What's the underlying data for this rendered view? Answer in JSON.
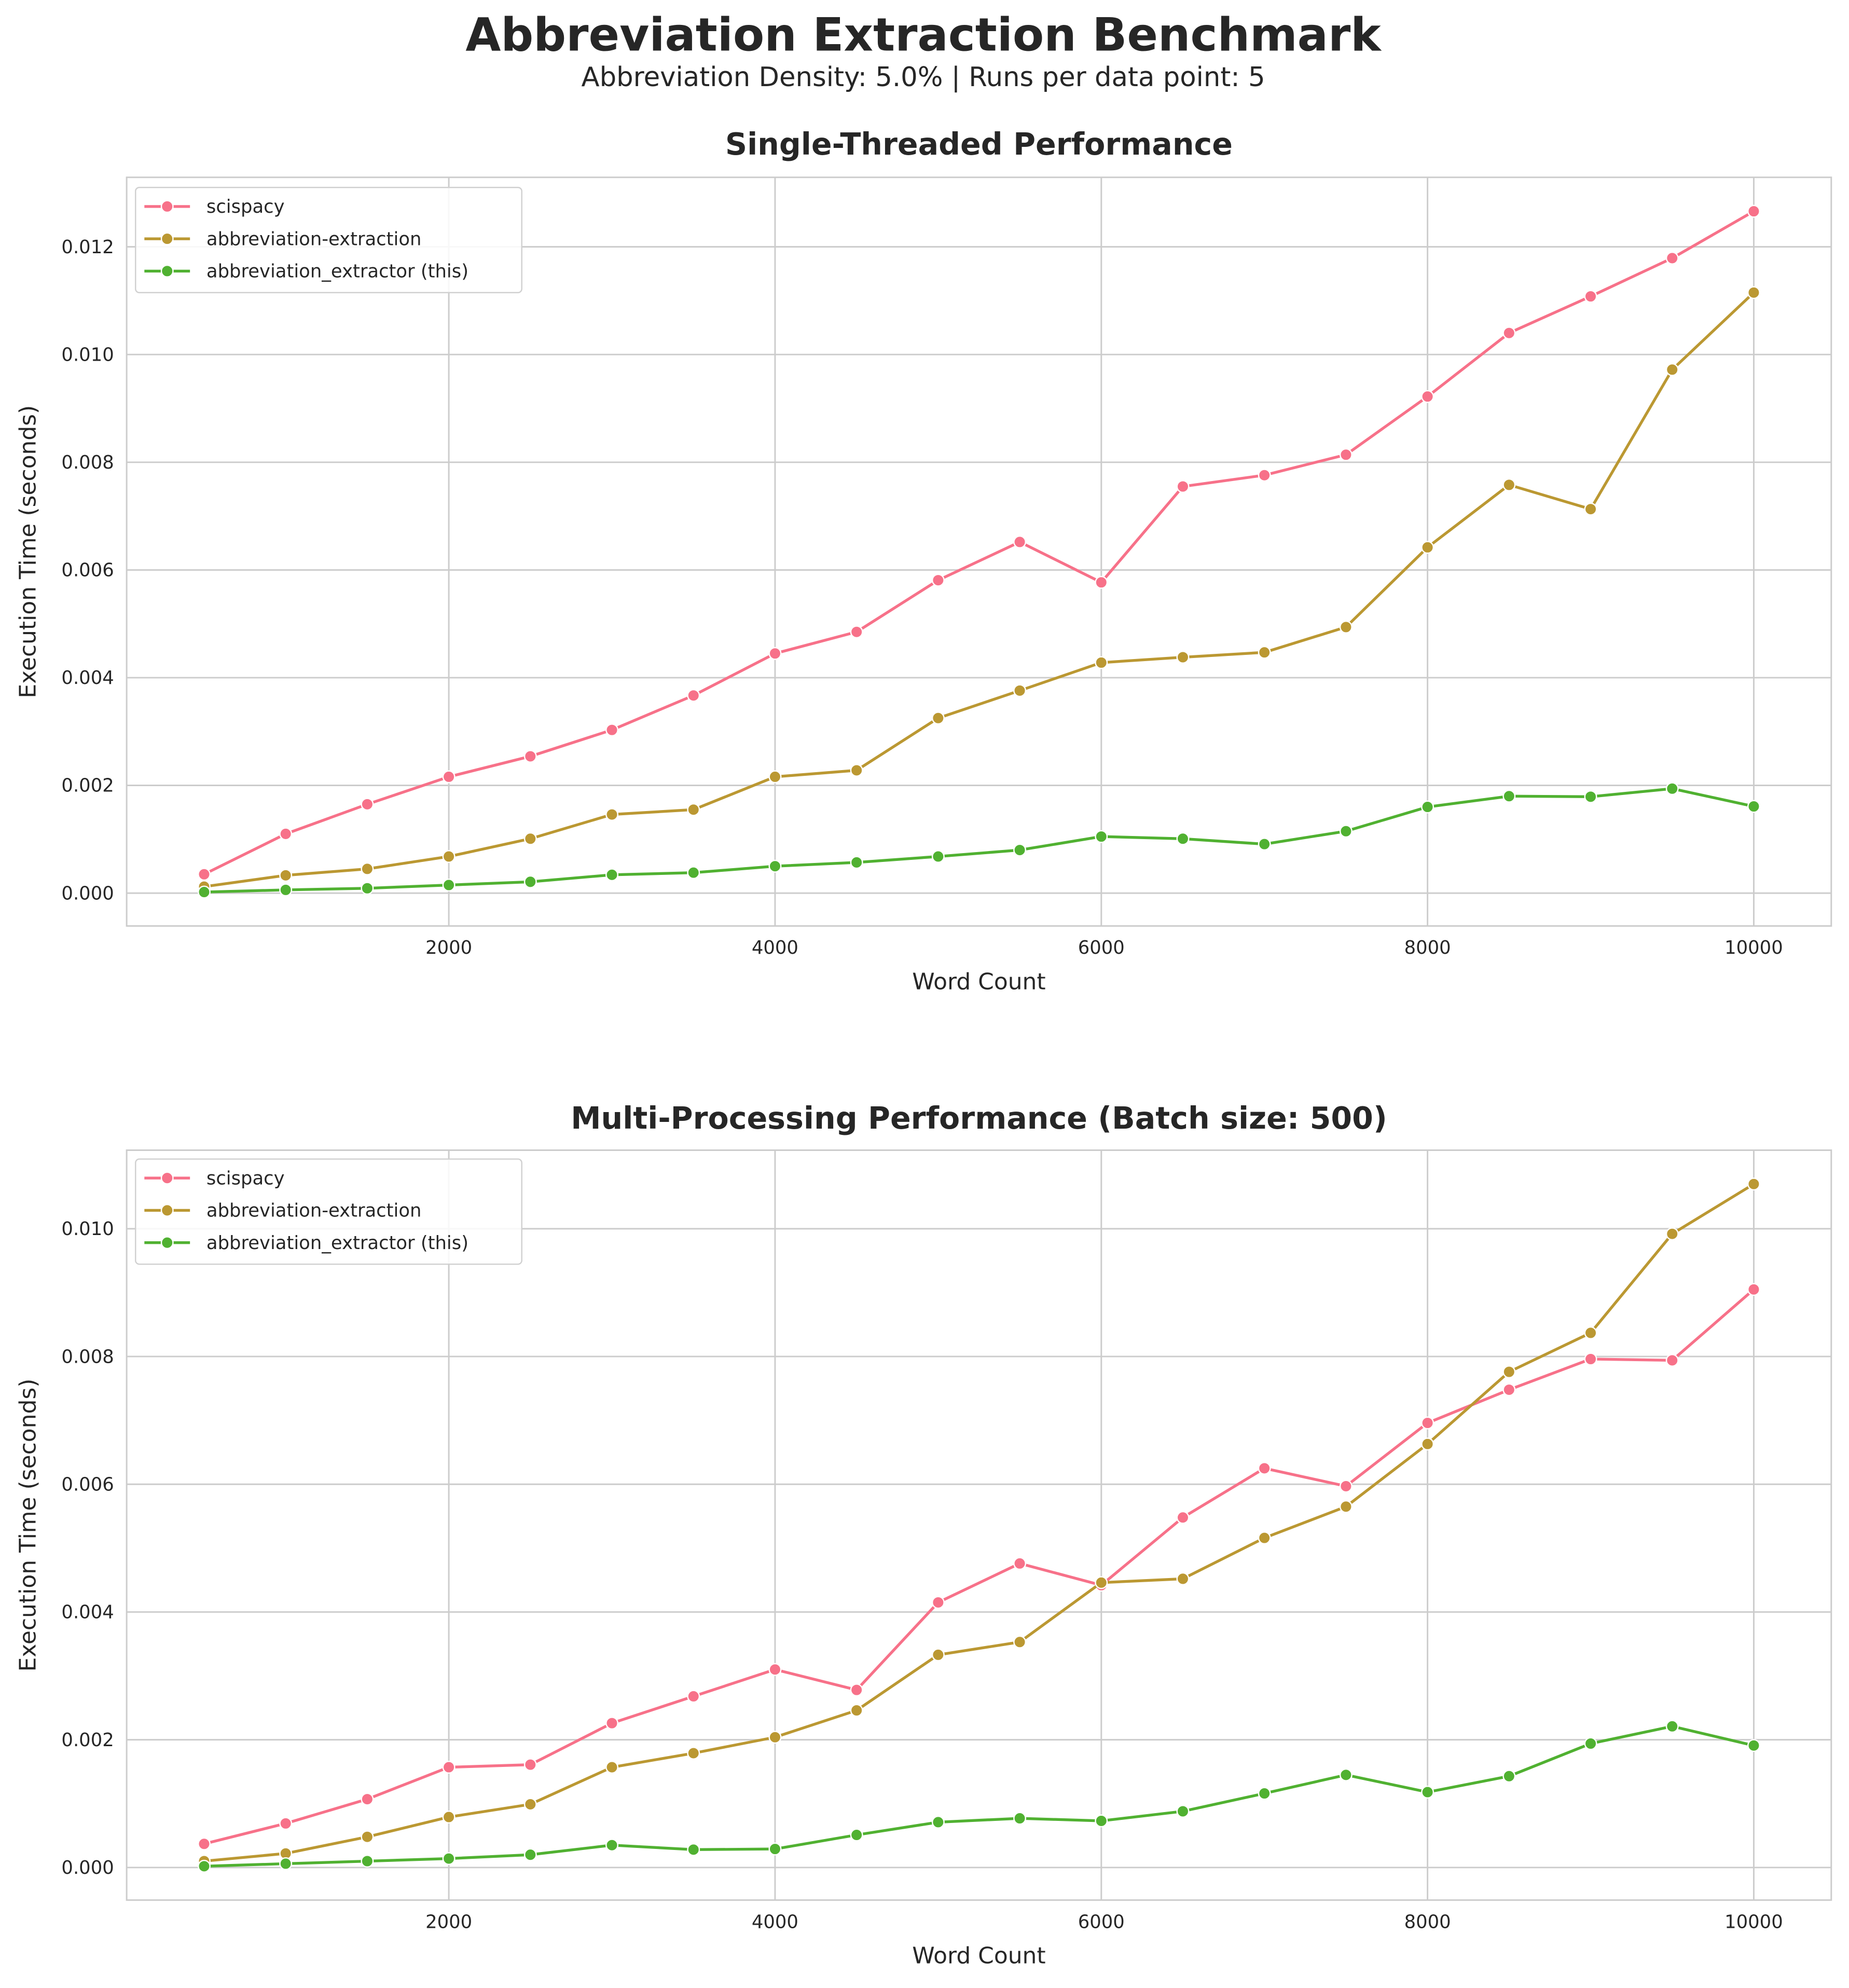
{
  "title": "Abbreviation Extraction Benchmark",
  "subtitle": "Abbreviation Density: 5.0% | Runs per data point: 5",
  "colors": {
    "scispacy": "#f77189",
    "abbreviation-extraction": "#bb9832",
    "abbreviation_extractor (this)": "#50b131"
  },
  "chart_data": [
    {
      "type": "line",
      "title": "Single-Threaded Performance",
      "xlabel": "Word Count",
      "ylabel": "Execution Time (seconds)",
      "xlim": [
        25,
        10475
      ],
      "ylim": [
        -0.00061,
        0.01329
      ],
      "xticks": [
        2000,
        4000,
        6000,
        8000,
        10000
      ],
      "xtick_labels": [
        "2000",
        "4000",
        "6000",
        "8000",
        "10000"
      ],
      "yticks": [
        0,
        0.002,
        0.004,
        0.006,
        0.008,
        0.01,
        0.012
      ],
      "ytick_labels": [
        "0.000",
        "0.002",
        "0.004",
        "0.006",
        "0.008",
        "0.010",
        "0.012"
      ],
      "grid": true,
      "legend": "top-left",
      "x": [
        500,
        1000,
        1500,
        2000,
        2500,
        3000,
        3500,
        4000,
        4500,
        5000,
        5500,
        6000,
        6500,
        7000,
        7500,
        8000,
        8500,
        9000,
        9500,
        10000
      ],
      "series": [
        {
          "name": "scispacy",
          "color": "#f77189",
          "values": [
            0.00035,
            0.0011,
            0.00165,
            0.00216,
            0.00254,
            0.00303,
            0.00367,
            0.00445,
            0.00485,
            0.00581,
            0.00652,
            0.00577,
            0.00755,
            0.00776,
            0.00814,
            0.00922,
            0.0104,
            0.01108,
            0.01179,
            0.01266
          ]
        },
        {
          "name": "abbreviation-extraction",
          "color": "#bb9832",
          "values": [
            0.00012,
            0.00033,
            0.00045,
            0.00068,
            0.00101,
            0.00146,
            0.00155,
            0.00216,
            0.00228,
            0.00325,
            0.00376,
            0.00428,
            0.00438,
            0.00447,
            0.00494,
            0.00642,
            0.00758,
            0.00713,
            0.00972,
            0.01115
          ]
        },
        {
          "name": "abbreviation_extractor (this)",
          "color": "#50b131",
          "values": [
            2e-05,
            6e-05,
            9e-05,
            0.00015,
            0.00021,
            0.00034,
            0.00038,
            0.0005,
            0.00057,
            0.00068,
            0.0008,
            0.00105,
            0.00101,
            0.00091,
            0.00115,
            0.0016,
            0.0018,
            0.00179,
            0.00194,
            0.00161
          ]
        }
      ]
    },
    {
      "type": "line",
      "title": "Multi-Processing Performance (Batch size: 500)",
      "xlabel": "Word Count",
      "ylabel": "Execution Time (seconds)",
      "xlim": [
        25,
        10475
      ],
      "ylim": [
        -0.00051,
        0.01123
      ],
      "xticks": [
        2000,
        4000,
        6000,
        8000,
        10000
      ],
      "xtick_labels": [
        "2000",
        "4000",
        "6000",
        "8000",
        "10000"
      ],
      "yticks": [
        0,
        0.002,
        0.004,
        0.006,
        0.008,
        0.01
      ],
      "ytick_labels": [
        "0.000",
        "0.002",
        "0.004",
        "0.006",
        "0.008",
        "0.010"
      ],
      "grid": true,
      "legend": "top-left",
      "x": [
        500,
        1000,
        1500,
        2000,
        2500,
        3000,
        3500,
        4000,
        4500,
        5000,
        5500,
        6000,
        6500,
        7000,
        7500,
        8000,
        8500,
        9000,
        9500,
        10000
      ],
      "series": [
        {
          "name": "scispacy",
          "color": "#f77189",
          "values": [
            0.00037,
            0.00069,
            0.00107,
            0.00157,
            0.00161,
            0.00226,
            0.00268,
            0.0031,
            0.00278,
            0.00415,
            0.00476,
            0.00442,
            0.00548,
            0.00625,
            0.00597,
            0.00696,
            0.00748,
            0.00796,
            0.00794,
            0.00905
          ]
        },
        {
          "name": "abbreviation-extraction",
          "color": "#bb9832",
          "values": [
            0.0001,
            0.00022,
            0.00048,
            0.00079,
            0.00099,
            0.00157,
            0.00179,
            0.00204,
            0.00246,
            0.00333,
            0.00353,
            0.00446,
            0.00452,
            0.00516,
            0.00565,
            0.00663,
            0.00776,
            0.00837,
            0.00992,
            0.0107
          ]
        },
        {
          "name": "abbreviation_extractor (this)",
          "color": "#50b131",
          "values": [
            2e-05,
            6e-05,
            0.0001,
            0.00014,
            0.0002,
            0.00035,
            0.00028,
            0.00029,
            0.00051,
            0.00071,
            0.00077,
            0.00073,
            0.00088,
            0.00116,
            0.00145,
            0.00118,
            0.00143,
            0.00194,
            0.00221,
            0.00191
          ]
        }
      ]
    }
  ]
}
